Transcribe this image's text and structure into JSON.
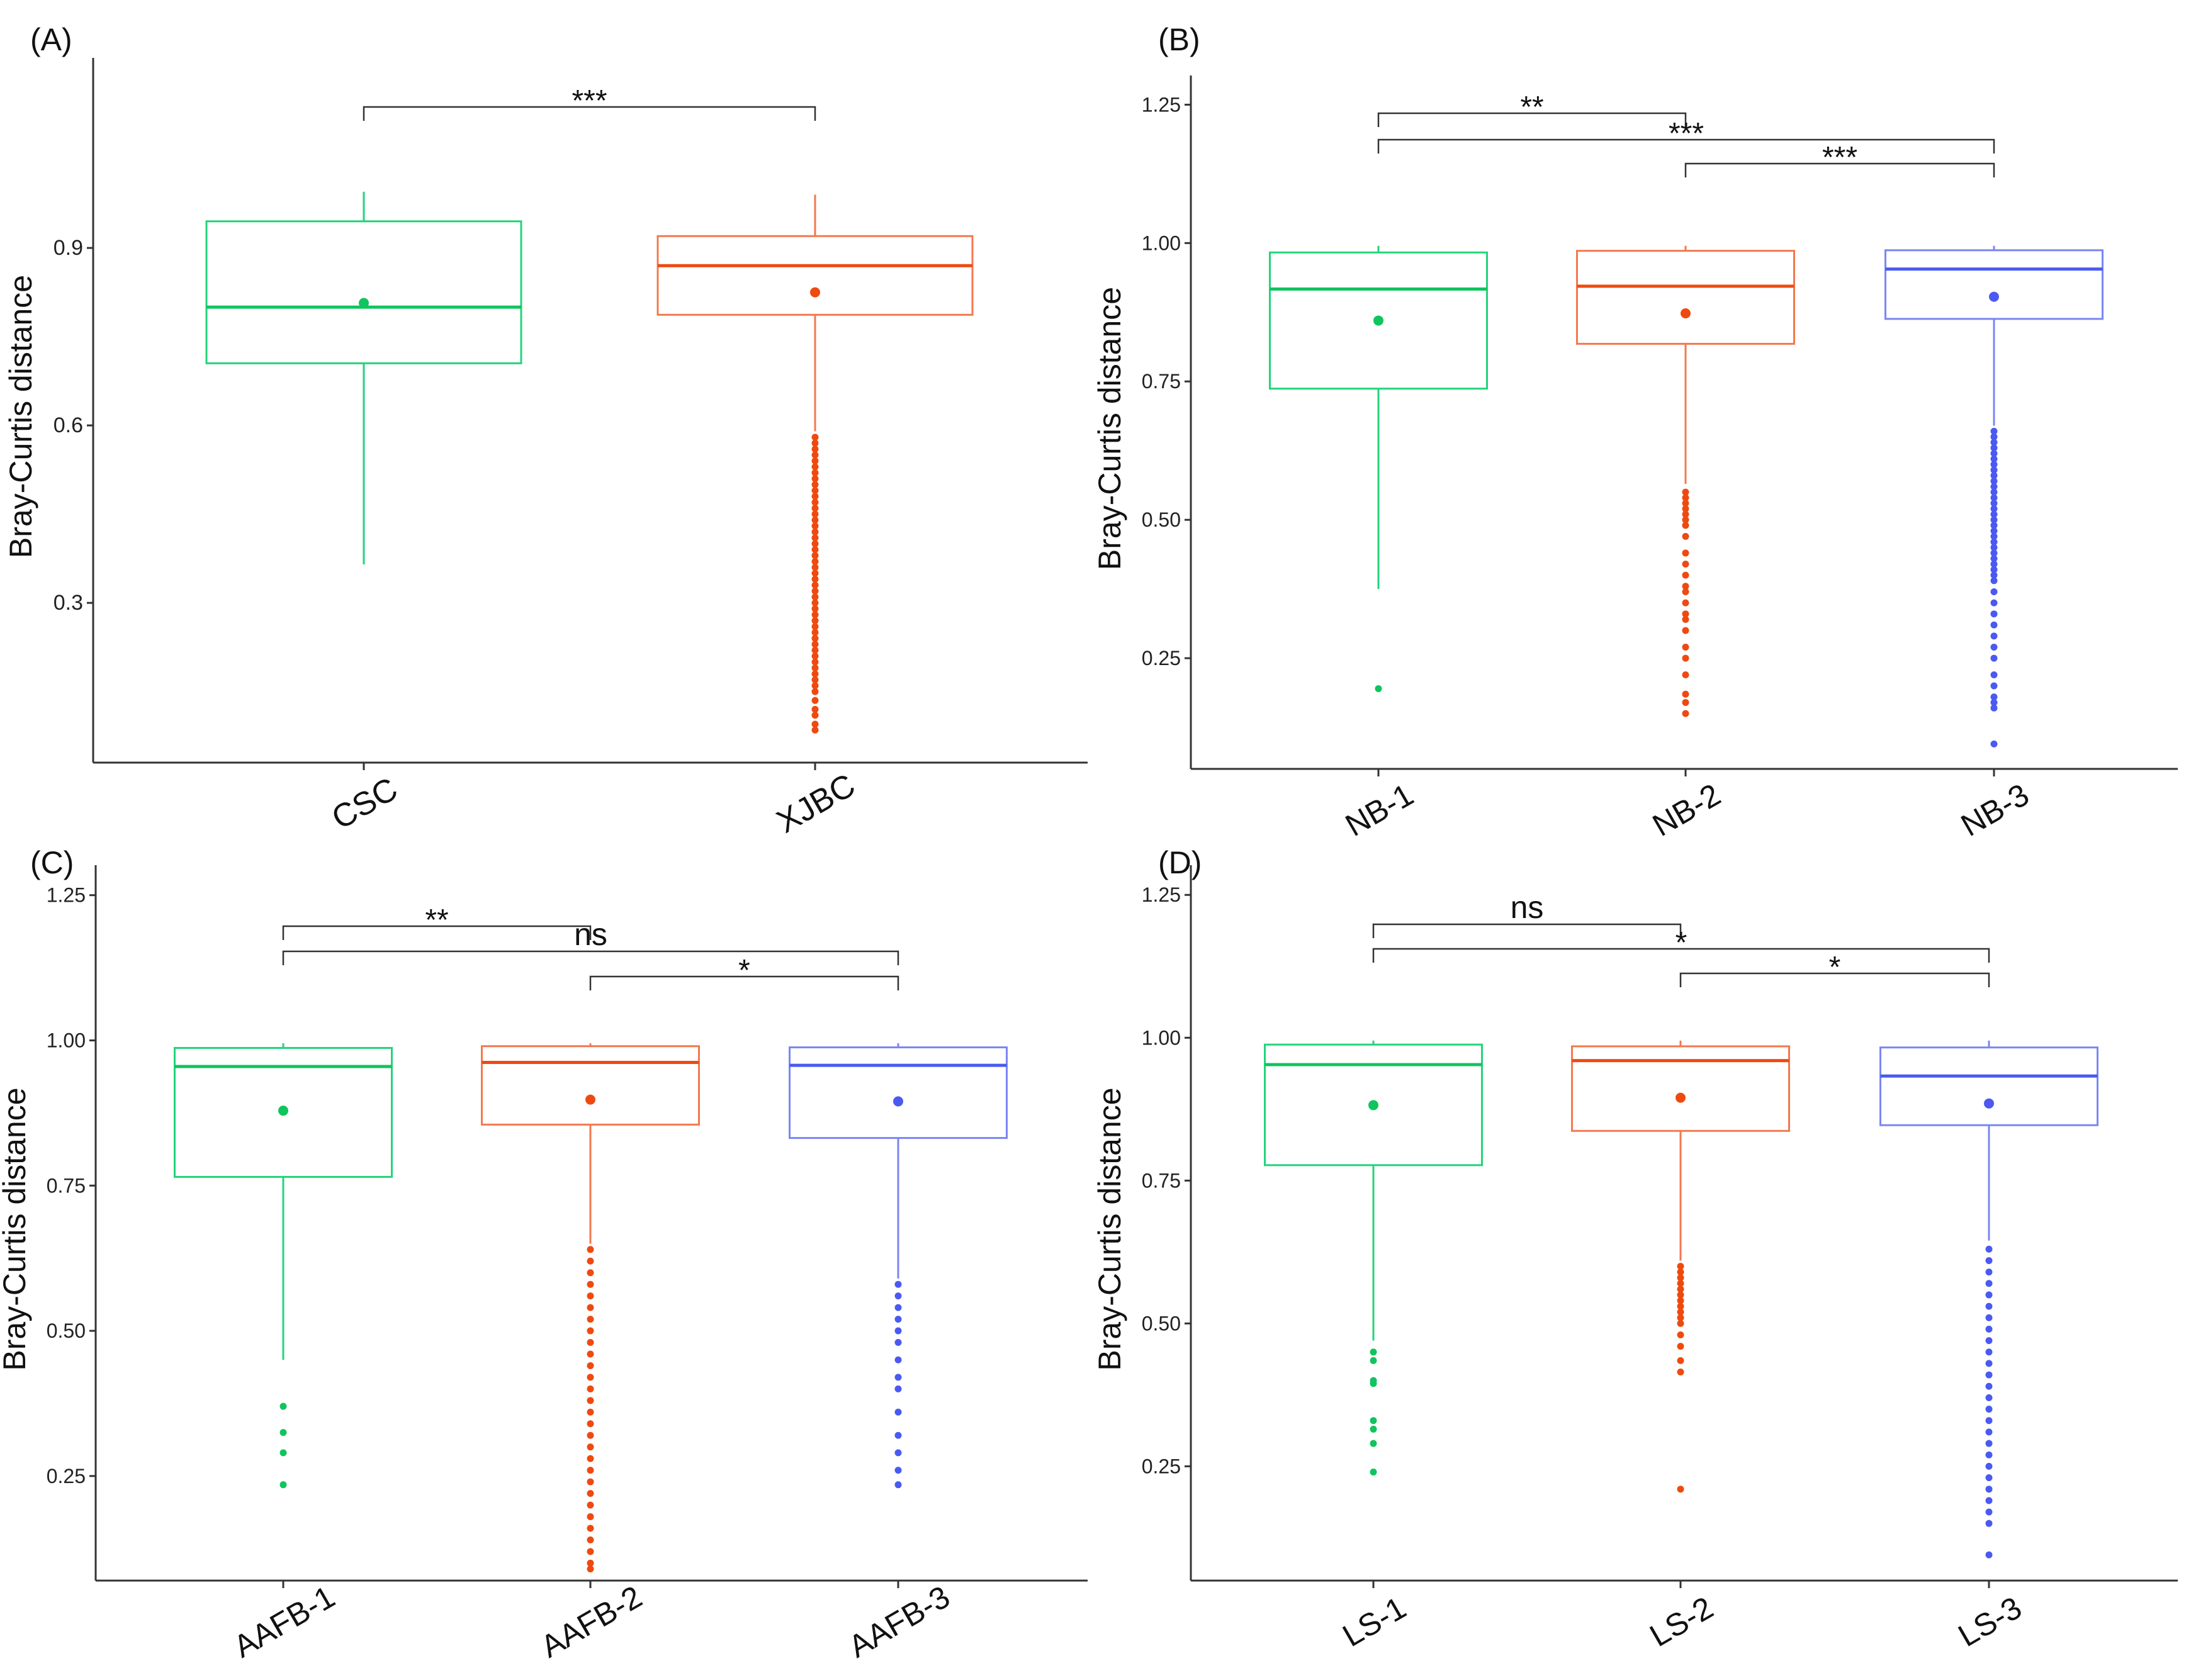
{
  "chart_data": [
    {
      "type": "box",
      "panel_label": "(A)",
      "ylabel": "Bray-Curtis distance",
      "ylim": [
        0.03,
        1.2
      ],
      "yticks": [
        0.3,
        0.6,
        0.9
      ],
      "ytick_labels": [
        "0.3",
        "0.6",
        "0.9"
      ],
      "categories": [
        "CSC",
        "XJBC"
      ],
      "colors": [
        "#22d47a",
        "#f4784d"
      ],
      "dot_colors": [
        "#10c45e",
        "#ee4a10"
      ],
      "boxes": [
        {
          "q1": 0.705,
          "median": 0.8,
          "q3": 0.945,
          "whisker_low": 0.365,
          "whisker_high": 0.995,
          "mean": 0.807,
          "outliers": []
        },
        {
          "q1": 0.787,
          "median": 0.87,
          "q3": 0.92,
          "whisker_low": 0.59,
          "whisker_high": 0.99,
          "mean": 0.825,
          "outliers": [
            0.085,
            0.095,
            0.11,
            0.12,
            0.135,
            0.15,
            0.16,
            0.17,
            0.18,
            0.19,
            0.2,
            0.21,
            0.22,
            0.23,
            0.24,
            0.25,
            0.26,
            0.27,
            0.28,
            0.29,
            0.3,
            0.31,
            0.32,
            0.33,
            0.34,
            0.35,
            0.36,
            0.37,
            0.38,
            0.39,
            0.4,
            0.41,
            0.42,
            0.43,
            0.44,
            0.45,
            0.46,
            0.47,
            0.48,
            0.49,
            0.5,
            0.51,
            0.52,
            0.53,
            0.54,
            0.55,
            0.56,
            0.57,
            0.58
          ]
        }
      ],
      "comparisons": [
        {
          "from": 0,
          "to": 1,
          "label": "***",
          "level": 0
        }
      ]
    },
    {
      "type": "box",
      "panel_label": "(B)",
      "ylabel": "Bray-Curtis distance",
      "ylim": [
        0.05,
        1.28
      ],
      "yticks": [
        0.25,
        0.5,
        0.75,
        1.0,
        1.25
      ],
      "ytick_labels": [
        "0.25",
        "0.50",
        "0.75",
        "1.00",
        "1.25"
      ],
      "categories": [
        "NB-1",
        "NB-2",
        "NB-3"
      ],
      "colors": [
        "#22d47a",
        "#f4784d",
        "#7a86f2"
      ],
      "dot_colors": [
        "#10c45e",
        "#ee4a10",
        "#4a5af0"
      ],
      "boxes": [
        {
          "q1": 0.737,
          "median": 0.917,
          "q3": 0.983,
          "whisker_low": 0.375,
          "whisker_high": 0.995,
          "mean": 0.86,
          "outliers": [
            0.195
          ]
        },
        {
          "q1": 0.818,
          "median": 0.922,
          "q3": 0.986,
          "whisker_low": 0.565,
          "whisker_high": 0.995,
          "mean": 0.873,
          "outliers": [
            0.15,
            0.17,
            0.185,
            0.22,
            0.25,
            0.27,
            0.3,
            0.32,
            0.33,
            0.35,
            0.37,
            0.38,
            0.4,
            0.42,
            0.44,
            0.47,
            0.49,
            0.5,
            0.51,
            0.52,
            0.53,
            0.54,
            0.55
          ]
        },
        {
          "q1": 0.863,
          "median": 0.953,
          "q3": 0.987,
          "whisker_low": 0.67,
          "whisker_high": 0.995,
          "mean": 0.903,
          "outliers": [
            0.095,
            0.16,
            0.17,
            0.18,
            0.2,
            0.22,
            0.25,
            0.27,
            0.29,
            0.31,
            0.33,
            0.35,
            0.37,
            0.39,
            0.4,
            0.41,
            0.42,
            0.43,
            0.44,
            0.45,
            0.46,
            0.47,
            0.48,
            0.49,
            0.5,
            0.51,
            0.52,
            0.53,
            0.54,
            0.55,
            0.56,
            0.57,
            0.58,
            0.59,
            0.6,
            0.61,
            0.62,
            0.63,
            0.64,
            0.65,
            0.66
          ]
        }
      ],
      "comparisons": [
        {
          "from": 0,
          "to": 1,
          "label": "**",
          "level": 2
        },
        {
          "from": 0,
          "to": 2,
          "label": "***",
          "level": 1
        },
        {
          "from": 1,
          "to": 2,
          "label": "***",
          "level": 0
        }
      ]
    },
    {
      "type": "box",
      "panel_label": "(C)",
      "ylabel": "Bray-Curtis distance",
      "ylim": [
        0.07,
        1.28
      ],
      "yticks": [
        0.25,
        0.5,
        0.75,
        1.0,
        1.25
      ],
      "ytick_labels": [
        "0.25",
        "0.50",
        "0.75",
        "1.00",
        "1.25"
      ],
      "categories": [
        "AAFB-1",
        "AAFB-2",
        "AAFB-3"
      ],
      "colors": [
        "#22d47a",
        "#f4784d",
        "#7a86f2"
      ],
      "dot_colors": [
        "#10c45e",
        "#ee4a10",
        "#4a5af0"
      ],
      "boxes": [
        {
          "q1": 0.765,
          "median": 0.955,
          "q3": 0.987,
          "whisker_low": 0.45,
          "whisker_high": 0.995,
          "mean": 0.879,
          "outliers": [
            0.235,
            0.29,
            0.325,
            0.37
          ]
        },
        {
          "q1": 0.855,
          "median": 0.962,
          "q3": 0.99,
          "whisker_low": 0.65,
          "whisker_high": 0.995,
          "mean": 0.898,
          "outliers": [
            0.09,
            0.1,
            0.12,
            0.14,
            0.16,
            0.18,
            0.2,
            0.22,
            0.24,
            0.26,
            0.28,
            0.3,
            0.32,
            0.34,
            0.36,
            0.38,
            0.4,
            0.42,
            0.44,
            0.46,
            0.48,
            0.5,
            0.52,
            0.54,
            0.56,
            0.58,
            0.6,
            0.62,
            0.64
          ]
        },
        {
          "q1": 0.832,
          "median": 0.957,
          "q3": 0.988,
          "whisker_low": 0.59,
          "whisker_high": 0.995,
          "mean": 0.895,
          "outliers": [
            0.235,
            0.26,
            0.29,
            0.32,
            0.36,
            0.4,
            0.42,
            0.45,
            0.48,
            0.5,
            0.52,
            0.54,
            0.56,
            0.58
          ]
        }
      ],
      "comparisons": [
        {
          "from": 0,
          "to": 1,
          "label": "**",
          "level": 2
        },
        {
          "from": 0,
          "to": 2,
          "label": "ns",
          "level": 1
        },
        {
          "from": 1,
          "to": 2,
          "label": "*",
          "level": 0
        }
      ]
    },
    {
      "type": "box",
      "panel_label": "(D)",
      "ylabel": "Bray-Curtis distance",
      "ylim": [
        0.05,
        1.28
      ],
      "yticks": [
        0.25,
        0.5,
        0.75,
        1.0,
        1.25
      ],
      "ytick_labels": [
        "0.25",
        "0.50",
        "0.75",
        "1.00",
        "1.25"
      ],
      "categories": [
        "LS-1",
        "LS-2",
        "LS-3"
      ],
      "colors": [
        "#22d47a",
        "#f4784d",
        "#7a86f2"
      ],
      "dot_colors": [
        "#10c45e",
        "#ee4a10",
        "#4a5af0"
      ],
      "boxes": [
        {
          "q1": 0.777,
          "median": 0.953,
          "q3": 0.988,
          "whisker_low": 0.47,
          "whisker_high": 0.995,
          "mean": 0.882,
          "outliers": [
            0.24,
            0.29,
            0.315,
            0.33,
            0.395,
            0.4,
            0.435,
            0.45
          ]
        },
        {
          "q1": 0.837,
          "median": 0.96,
          "q3": 0.985,
          "whisker_low": 0.61,
          "whisker_high": 0.995,
          "mean": 0.895,
          "outliers": [
            0.21,
            0.415,
            0.435,
            0.46,
            0.48,
            0.5,
            0.51,
            0.52,
            0.53,
            0.54,
            0.55,
            0.56,
            0.57,
            0.58,
            0.59,
            0.6
          ]
        },
        {
          "q1": 0.847,
          "median": 0.933,
          "q3": 0.983,
          "whisker_low": 0.645,
          "whisker_high": 0.995,
          "mean": 0.885,
          "outliers": [
            0.095,
            0.15,
            0.17,
            0.19,
            0.21,
            0.23,
            0.25,
            0.27,
            0.29,
            0.31,
            0.33,
            0.35,
            0.37,
            0.39,
            0.41,
            0.43,
            0.45,
            0.47,
            0.49,
            0.51,
            0.53,
            0.55,
            0.57,
            0.59,
            0.61,
            0.63
          ]
        }
      ],
      "comparisons": [
        {
          "from": 0,
          "to": 1,
          "label": "ns",
          "level": 2
        },
        {
          "from": 0,
          "to": 2,
          "label": "*",
          "level": 1
        },
        {
          "from": 1,
          "to": 2,
          "label": "*",
          "level": 0
        }
      ]
    }
  ]
}
